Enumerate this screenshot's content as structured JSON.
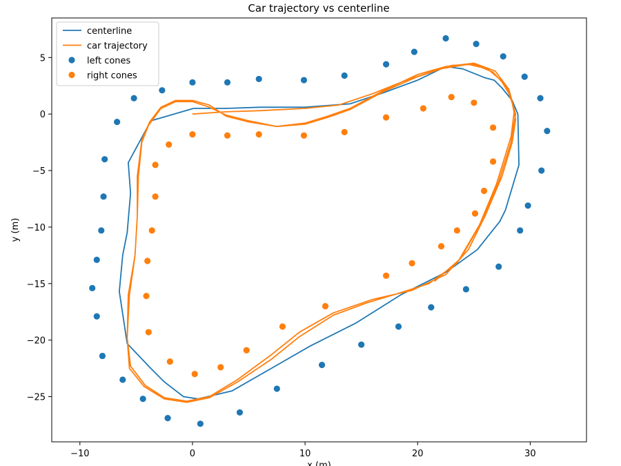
{
  "chart_data": {
    "type": "scatter",
    "title": "Car trajectory vs centerline",
    "xlabel": "x (m)",
    "ylabel": "y (m)",
    "xlim": [
      -12.5,
      35
    ],
    "ylim": [
      -29,
      8.5
    ],
    "xticks": [
      -10,
      0,
      10,
      20,
      30
    ],
    "yticks": [
      5,
      0,
      -5,
      -10,
      -15,
      -20,
      -25
    ],
    "grid": false,
    "legend_position": "top-left",
    "series": [
      {
        "name": "centerline",
        "kind": "line",
        "color": "#1f77b4",
        "points": [
          [
            0.1,
            0.5
          ],
          [
            3,
            0.5
          ],
          [
            6,
            0.6
          ],
          [
            10,
            0.6
          ],
          [
            14,
            0.9
          ],
          [
            17,
            1.9
          ],
          [
            20,
            3
          ],
          [
            22.5,
            4.2
          ],
          [
            24,
            4
          ],
          [
            26,
            3.2
          ],
          [
            26.8,
            3
          ],
          [
            27.5,
            2.3
          ],
          [
            28.4,
            1.2
          ],
          [
            28.9,
            0
          ],
          [
            29,
            -4.5
          ],
          [
            27.8,
            -8.5
          ],
          [
            27.3,
            -9.5
          ],
          [
            25.3,
            -12
          ],
          [
            22.5,
            -14
          ],
          [
            18.5,
            -16
          ],
          [
            14.5,
            -18.5
          ],
          [
            10.5,
            -20.5
          ],
          [
            7,
            -22.5
          ],
          [
            3.5,
            -24.5
          ],
          [
            0.5,
            -25.2
          ],
          [
            -0.8,
            -25
          ],
          [
            -2.5,
            -23.7
          ],
          [
            -3.7,
            -22.5
          ],
          [
            -5.8,
            -20.3
          ],
          [
            -6.5,
            -15.7
          ],
          [
            -6.2,
            -12.5
          ],
          [
            -5.8,
            -10.5
          ],
          [
            -5.5,
            -7
          ],
          [
            -5.7,
            -4.3
          ],
          [
            -3.7,
            -0.6
          ],
          [
            0.1,
            0.5
          ]
        ]
      },
      {
        "name": "car trajectory",
        "kind": "line",
        "color": "#ff7f0e",
        "points": [
          [
            0,
            0
          ],
          [
            3,
            0.2
          ],
          [
            6,
            0.3
          ],
          [
            10,
            0.5
          ],
          [
            13,
            0.8
          ],
          [
            16,
            1.8
          ],
          [
            19,
            3
          ],
          [
            22,
            4
          ],
          [
            24.5,
            4.4
          ],
          [
            26.2,
            4
          ],
          [
            27.4,
            3
          ],
          [
            28.3,
            1.5
          ],
          [
            28.7,
            -0.5
          ],
          [
            28.4,
            -2.5
          ],
          [
            27.5,
            -5.5
          ],
          [
            26,
            -9
          ],
          [
            24.5,
            -12
          ],
          [
            22.5,
            -14.2
          ],
          [
            19.5,
            -15.6
          ],
          [
            16,
            -16.4
          ],
          [
            12.5,
            -17.6
          ],
          [
            9.5,
            -19.3
          ],
          [
            7,
            -21.3
          ],
          [
            4,
            -23.5
          ],
          [
            1.5,
            -25
          ],
          [
            -0.5,
            -25.4
          ],
          [
            -2.5,
            -25.1
          ],
          [
            -4.2,
            -24
          ],
          [
            -5.5,
            -22.3
          ],
          [
            -5.8,
            -19.8
          ],
          [
            -5.7,
            -16
          ],
          [
            -5.1,
            -12.5
          ],
          [
            -4.9,
            -9
          ],
          [
            -4.8,
            -5.5
          ],
          [
            -4.5,
            -2.5
          ],
          [
            -3.9,
            -1
          ],
          [
            -2.8,
            0.5
          ],
          [
            -1.5,
            1.1
          ],
          [
            0,
            1.1
          ],
          [
            1.5,
            0.6
          ],
          [
            3,
            -0.1
          ],
          [
            5,
            -0.6
          ],
          [
            7.5,
            -1.1
          ],
          [
            10,
            -0.9
          ],
          [
            12,
            -0.3
          ],
          [
            14,
            0.4
          ],
          [
            17,
            2
          ],
          [
            20,
            3.3
          ],
          [
            23,
            4.3
          ],
          [
            25,
            4.4
          ],
          [
            26.7,
            3.7
          ],
          [
            27.9,
            2.4
          ],
          [
            28.6,
            0.4
          ],
          [
            28.3,
            -2
          ],
          [
            27,
            -6.2
          ],
          [
            25.5,
            -9.8
          ],
          [
            23.5,
            -13.2
          ],
          [
            21,
            -15
          ],
          [
            18.5,
            -15.8
          ],
          [
            15.5,
            -16.7
          ],
          [
            12.5,
            -17.8
          ],
          [
            9.5,
            -19.7
          ],
          [
            7,
            -21.7
          ],
          [
            4,
            -23.7
          ],
          [
            1.5,
            -25.1
          ],
          [
            -0.5,
            -25.5
          ],
          [
            -2.5,
            -25.2
          ],
          [
            -4.3,
            -24.1
          ],
          [
            -5.6,
            -22.5
          ],
          [
            -5.8,
            -19.8
          ],
          [
            -5.6,
            -16
          ],
          [
            -5.1,
            -12.5
          ],
          [
            -4.9,
            -9
          ],
          [
            -4.9,
            -5.5
          ],
          [
            -4.5,
            -2.3
          ],
          [
            -3.8,
            -0.7
          ],
          [
            -2.8,
            0.6
          ],
          [
            -1.5,
            1.2
          ],
          [
            0,
            1.2
          ],
          [
            1.5,
            0.8
          ],
          [
            3,
            -0.2
          ],
          [
            5,
            -0.7
          ],
          [
            7.5,
            -1.1
          ],
          [
            10,
            -0.8
          ],
          [
            12,
            -0.2
          ],
          [
            14,
            0.5
          ],
          [
            17,
            2.1
          ],
          [
            20,
            3.5
          ],
          [
            22.5,
            4.2
          ],
          [
            25,
            4.5
          ],
          [
            26.9,
            3.8
          ],
          [
            28.1,
            2.2
          ],
          [
            28.7,
            0
          ],
          [
            28.3,
            -2.5
          ],
          [
            27.2,
            -6
          ],
          [
            25.7,
            -9.5
          ],
          [
            23.8,
            -12.8
          ],
          [
            21.5,
            -14.8
          ]
        ]
      },
      {
        "name": "left cones",
        "kind": "scatter",
        "color": "#1f77b4",
        "points": [
          [
            -5.2,
            1.4
          ],
          [
            -2.7,
            2.1
          ],
          [
            0,
            2.8
          ],
          [
            3.1,
            2.8
          ],
          [
            5.9,
            3.1
          ],
          [
            9.9,
            3
          ],
          [
            13.5,
            3.4
          ],
          [
            17.2,
            4.4
          ],
          [
            19.7,
            5.5
          ],
          [
            22.5,
            6.7
          ],
          [
            25.2,
            6.2
          ],
          [
            27.6,
            5.1
          ],
          [
            29.5,
            3.3
          ],
          [
            30.9,
            1.4
          ],
          [
            31.5,
            -1.5
          ],
          [
            31,
            -5
          ],
          [
            29.8,
            -8.1
          ],
          [
            29.1,
            -10.3
          ],
          [
            27.2,
            -13.5
          ],
          [
            24.3,
            -15.5
          ],
          [
            21.2,
            -17.1
          ],
          [
            18.3,
            -18.8
          ],
          [
            15,
            -20.4
          ],
          [
            11.5,
            -22.2
          ],
          [
            7.5,
            -24.3
          ],
          [
            4.2,
            -26.4
          ],
          [
            0.7,
            -27.4
          ],
          [
            -2.2,
            -26.9
          ],
          [
            -4.4,
            -25.2
          ],
          [
            -6.2,
            -23.5
          ],
          [
            -8,
            -21.4
          ],
          [
            -8.5,
            -17.9
          ],
          [
            -8.9,
            -15.4
          ],
          [
            -8.5,
            -12.9
          ],
          [
            -8.1,
            -10.3
          ],
          [
            -7.9,
            -7.3
          ],
          [
            -7.8,
            -4
          ],
          [
            -6.7,
            -0.7
          ]
        ]
      },
      {
        "name": "right cones",
        "kind": "scatter",
        "color": "#ff7f0e",
        "points": [
          [
            0,
            -1.8
          ],
          [
            3.1,
            -1.9
          ],
          [
            5.9,
            -1.8
          ],
          [
            9.9,
            -1.9
          ],
          [
            13.5,
            -1.6
          ],
          [
            17.2,
            -0.3
          ],
          [
            20.5,
            0.5
          ],
          [
            23,
            1.5
          ],
          [
            25,
            1
          ],
          [
            26.7,
            -1.2
          ],
          [
            26.7,
            -4.2
          ],
          [
            25.9,
            -6.8
          ],
          [
            25.1,
            -8.8
          ],
          [
            23.5,
            -10.3
          ],
          [
            22.1,
            -11.7
          ],
          [
            19.5,
            -13.2
          ],
          [
            17.2,
            -14.3
          ],
          [
            11.8,
            -17
          ],
          [
            8,
            -18.8
          ],
          [
            4.8,
            -20.9
          ],
          [
            2.5,
            -22.4
          ],
          [
            0.2,
            -23
          ],
          [
            -2,
            -21.9
          ],
          [
            -3.9,
            -19.3
          ],
          [
            -4.1,
            -16.1
          ],
          [
            -4,
            -13
          ],
          [
            -3.6,
            -10.3
          ],
          [
            -3.3,
            -7.3
          ],
          [
            -3.3,
            -4.5
          ],
          [
            -2.1,
            -2.7
          ]
        ]
      }
    ]
  }
}
